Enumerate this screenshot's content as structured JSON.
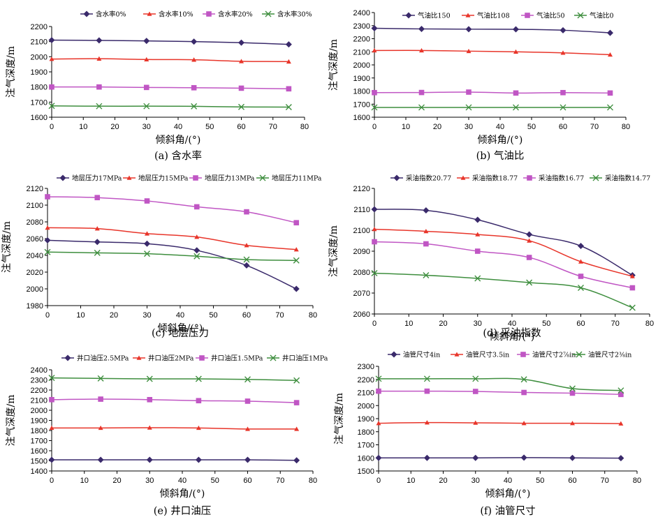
{
  "chart_data": [
    {
      "type": "line",
      "caption": "(a) 含水率",
      "xlabel": "倾斜角/(°)",
      "ylabel": "注气深度/m",
      "xlim": [
        0,
        80
      ],
      "xticks": [
        0,
        10,
        20,
        30,
        40,
        50,
        60,
        70,
        80
      ],
      "ylim": [
        1600,
        2200
      ],
      "yticks": [
        1600,
        1700,
        1800,
        1900,
        2000,
        2100,
        2200
      ],
      "legend_position": "top",
      "grid": false,
      "series": [
        {
          "name": "含水率0%",
          "color": "#3a2a6b",
          "marker": "diamond",
          "x": [
            0,
            15,
            30,
            45,
            60,
            75
          ],
          "y": [
            2110,
            2108,
            2105,
            2100,
            2093,
            2082
          ]
        },
        {
          "name": "含水率10%",
          "color": "#e8352a",
          "marker": "triangle",
          "x": [
            0,
            15,
            30,
            45,
            60,
            75
          ],
          "y": [
            1985,
            1987,
            1982,
            1980,
            1970,
            1968
          ]
        },
        {
          "name": "含水率20%",
          "color": "#c056c4",
          "marker": "square",
          "x": [
            0,
            15,
            30,
            45,
            60,
            75
          ],
          "y": [
            1800,
            1800,
            1797,
            1795,
            1792,
            1788
          ]
        },
        {
          "name": "含水率30%",
          "color": "#3e8e3e",
          "marker": "x",
          "x": [
            0,
            15,
            30,
            45,
            60,
            75
          ],
          "y": [
            1675,
            1673,
            1673,
            1672,
            1668,
            1667
          ]
        }
      ]
    },
    {
      "type": "line",
      "caption": "(b) 气油比",
      "xlabel": "倾斜角/(°)",
      "ylabel": "注气深度/m",
      "xlim": [
        0,
        80
      ],
      "xticks": [
        0,
        10,
        20,
        30,
        40,
        50,
        60,
        70,
        80
      ],
      "ylim": [
        1600,
        2400
      ],
      "yticks": [
        1600,
        1700,
        1800,
        1900,
        2000,
        2100,
        2200,
        2300,
        2400
      ],
      "legend_position": "top",
      "grid": false,
      "series": [
        {
          "name": "气油比150",
          "color": "#3a2a6b",
          "marker": "diamond",
          "x": [
            0,
            15,
            30,
            45,
            60,
            75
          ],
          "y": [
            2280,
            2275,
            2273,
            2272,
            2265,
            2245
          ]
        },
        {
          "name": "气油比108",
          "color": "#e8352a",
          "marker": "triangle",
          "x": [
            0,
            15,
            30,
            45,
            60,
            75
          ],
          "y": [
            2110,
            2110,
            2105,
            2100,
            2092,
            2078
          ]
        },
        {
          "name": "气油比50",
          "color": "#c056c4",
          "marker": "square",
          "x": [
            0,
            15,
            30,
            45,
            60,
            75
          ],
          "y": [
            1788,
            1789,
            1792,
            1785,
            1788,
            1785
          ]
        },
        {
          "name": "气油比0",
          "color": "#3e8e3e",
          "marker": "x",
          "x": [
            0,
            15,
            30,
            45,
            60,
            75
          ],
          "y": [
            1675,
            1675,
            1675,
            1675,
            1675,
            1675
          ]
        }
      ]
    },
    {
      "type": "line",
      "caption": "(c) 地层压力",
      "xlabel": "倾斜角/(°)",
      "ylabel": "注气深度/m",
      "xlim": [
        0,
        80
      ],
      "xticks": [
        0,
        10,
        20,
        30,
        40,
        50,
        60,
        70,
        80
      ],
      "ylim": [
        1980,
        2120
      ],
      "yticks": [
        1980,
        2000,
        2020,
        2040,
        2060,
        2080,
        2100,
        2120
      ],
      "legend_position": "top",
      "grid": false,
      "series": [
        {
          "name": "地层压力17MPa",
          "color": "#3a2a6b",
          "marker": "diamond",
          "x": [
            0,
            15,
            30,
            45,
            60,
            75
          ],
          "y": [
            2058,
            2056,
            2054,
            2046,
            2028,
            2000
          ]
        },
        {
          "name": "地层压力15MPa",
          "color": "#e8352a",
          "marker": "triangle",
          "x": [
            0,
            15,
            30,
            45,
            60,
            75
          ],
          "y": [
            2073,
            2072,
            2066,
            2062,
            2052,
            2047
          ]
        },
        {
          "name": "地层压力13MPa",
          "color": "#c056c4",
          "marker": "square",
          "x": [
            0,
            15,
            30,
            45,
            60,
            75
          ],
          "y": [
            2110,
            2109,
            2105,
            2098,
            2092,
            2079
          ]
        },
        {
          "name": "地层压力11MPa",
          "color": "#3e8e3e",
          "marker": "x",
          "x": [
            0,
            15,
            30,
            45,
            60,
            75
          ],
          "y": [
            2044,
            2043,
            2042,
            2039,
            2035,
            2034
          ]
        }
      ]
    },
    {
      "type": "line",
      "caption": "(d) 采油指数",
      "xlabel": "倾斜角/(°)",
      "ylabel": "注气深度/m",
      "xlim": [
        0,
        80
      ],
      "xticks": [
        0,
        10,
        20,
        30,
        40,
        50,
        60,
        70,
        80
      ],
      "ylim": [
        2060,
        2120
      ],
      "yticks": [
        2060,
        2070,
        2080,
        2090,
        2100,
        2110,
        2120
      ],
      "legend_position": "top",
      "grid": false,
      "series": [
        {
          "name": "采油指数20.77",
          "color": "#3a2a6b",
          "marker": "diamond",
          "x": [
            0,
            15,
            30,
            45,
            60,
            75
          ],
          "y": [
            2110,
            2109.5,
            2105,
            2098,
            2092.5,
            2078.5
          ]
        },
        {
          "name": "采油指数18.77",
          "color": "#e8352a",
          "marker": "triangle",
          "x": [
            0,
            15,
            30,
            45,
            60,
            75
          ],
          "y": [
            2100.5,
            2099.5,
            2098,
            2095,
            2085,
            2078
          ]
        },
        {
          "name": "采油指数16.77",
          "color": "#c056c4",
          "marker": "square",
          "x": [
            0,
            15,
            30,
            45,
            60,
            75
          ],
          "y": [
            2094.5,
            2093.5,
            2090,
            2087,
            2078,
            2072.5
          ]
        },
        {
          "name": "采油指数14.77",
          "color": "#3e8e3e",
          "marker": "x",
          "x": [
            0,
            15,
            30,
            45,
            60,
            75
          ],
          "y": [
            2079.5,
            2078.5,
            2077,
            2075,
            2072.5,
            2063
          ]
        }
      ]
    },
    {
      "type": "line",
      "caption": "(e) 井口油压",
      "xlabel": "倾斜角/(°)",
      "ylabel": "注气深度/m",
      "xlim": [
        0,
        80
      ],
      "xticks": [
        0,
        10,
        20,
        30,
        40,
        50,
        60,
        70,
        80
      ],
      "ylim": [
        1400,
        2400
      ],
      "yticks": [
        1400,
        1500,
        1600,
        1700,
        1800,
        1900,
        2000,
        2100,
        2200,
        2300,
        2400
      ],
      "legend_position": "top",
      "grid": false,
      "series": [
        {
          "name": "井口油压2.5MPa",
          "color": "#3a2a6b",
          "marker": "diamond",
          "x": [
            0,
            15,
            30,
            45,
            60,
            75
          ],
          "y": [
            1510,
            1510,
            1510,
            1510,
            1510,
            1505
          ]
        },
        {
          "name": "井口油压2MPa",
          "color": "#e8352a",
          "marker": "triangle",
          "x": [
            0,
            15,
            30,
            45,
            60,
            75
          ],
          "y": [
            1825,
            1825,
            1828,
            1825,
            1815,
            1815
          ]
        },
        {
          "name": "井口油压1.5MPa",
          "color": "#c056c4",
          "marker": "square",
          "x": [
            0,
            15,
            30,
            45,
            60,
            75
          ],
          "y": [
            2105,
            2110,
            2105,
            2095,
            2090,
            2075
          ]
        },
        {
          "name": "井口油压1MPa",
          "color": "#3e8e3e",
          "marker": "x",
          "x": [
            0,
            15,
            30,
            45,
            60,
            75
          ],
          "y": [
            2320,
            2315,
            2310,
            2310,
            2305,
            2295
          ]
        }
      ]
    },
    {
      "type": "line",
      "caption": "(f) 油管尺寸",
      "xlabel": "倾斜角/(°)",
      "ylabel": "注气深度/m",
      "xlim": [
        0,
        80
      ],
      "xticks": [
        0,
        10,
        20,
        30,
        40,
        50,
        60,
        70,
        80
      ],
      "ylim": [
        1500,
        2300
      ],
      "yticks": [
        1500,
        1600,
        1700,
        1800,
        1900,
        2000,
        2100,
        2200,
        2300
      ],
      "legend_position": "top",
      "grid": false,
      "series": [
        {
          "name": "油管尺寸4in",
          "color": "#3a2a6b",
          "marker": "diamond",
          "x": [
            0,
            15,
            30,
            45,
            60,
            75
          ],
          "y": [
            1600,
            1600,
            1600,
            1602,
            1600,
            1598
          ]
        },
        {
          "name": "油管尺寸3.5in",
          "color": "#e8352a",
          "marker": "triangle",
          "x": [
            0,
            15,
            30,
            45,
            60,
            75
          ],
          "y": [
            1865,
            1870,
            1868,
            1865,
            1865,
            1862
          ]
        },
        {
          "name": "油管尺寸2⅞in",
          "color": "#c056c4",
          "marker": "square",
          "x": [
            0,
            15,
            30,
            45,
            60,
            75
          ],
          "y": [
            2110,
            2110,
            2108,
            2100,
            2095,
            2085
          ]
        },
        {
          "name": "油管尺寸2⅜in",
          "color": "#3e8e3e",
          "marker": "x",
          "x": [
            0,
            15,
            30,
            45,
            60,
            75
          ],
          "y": [
            2205,
            2205,
            2205,
            2200,
            2130,
            2115
          ]
        }
      ]
    }
  ]
}
